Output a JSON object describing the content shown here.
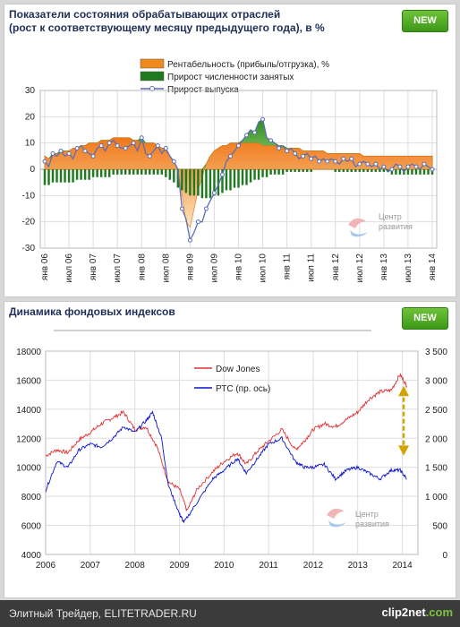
{
  "chart_data": [
    {
      "type": "line",
      "title": "Показатели состояния обрабатывающих отраслей",
      "subtitle": "(рост к соответствующему месяцу предыдущего года), в %",
      "ylim": [
        -30,
        30
      ],
      "yticks": [
        "30",
        "20",
        "10",
        "0",
        "-10",
        "-20",
        "-30"
      ],
      "xticks": [
        "янв 06",
        "июл 06",
        "янв 07",
        "июл 07",
        "янв 08",
        "июл 08",
        "янв 09",
        "июл 09",
        "янв 10",
        "июл 10",
        "янв 11",
        "июл 11",
        "янв 12",
        "июл 12",
        "янв 13",
        "июл 13",
        "янв 14"
      ],
      "legend_position": "top",
      "x_start_month": "2006-01",
      "series": [
        {
          "name": "Рентабельность (прибыль/отгрузка), %",
          "kind": "area",
          "color": "#f08a1c",
          "values": [
            5,
            4,
            5,
            6,
            6,
            7,
            7,
            8,
            8,
            9,
            9,
            10,
            10,
            10,
            11,
            11,
            11,
            12,
            12,
            12,
            12,
            12,
            11,
            11,
            10,
            10,
            10,
            10,
            9,
            8,
            7,
            5,
            3,
            0,
            -10,
            -20,
            -22,
            -15,
            -8,
            -3,
            2,
            5,
            7,
            8,
            9,
            9,
            10,
            10,
            10,
            10,
            10,
            10,
            10,
            10,
            9,
            9,
            9,
            9,
            9,
            8,
            8,
            8,
            8,
            8,
            7,
            7,
            7,
            7,
            7,
            7,
            6,
            6,
            6,
            6,
            6,
            6,
            6,
            6,
            6,
            5,
            5,
            5,
            5,
            5,
            5,
            5,
            5,
            5,
            5,
            5,
            5,
            5,
            5,
            5,
            5,
            5,
            5
          ]
        },
        {
          "name": "Прирост численности занятых",
          "kind": "bar",
          "color": "#1f7a1f",
          "values": [
            -6,
            -6,
            -5,
            -5,
            -5,
            -5,
            -5,
            -5,
            -4,
            -4,
            -4,
            -4,
            -3,
            -3,
            -3,
            -3,
            -3,
            -2,
            -2,
            -2,
            -2,
            -2,
            -2,
            -2,
            -2,
            -2,
            -2,
            -2,
            -2,
            -2,
            -3,
            -4,
            -5,
            -7,
            -8,
            -9,
            -10,
            -10,
            -10,
            -11,
            -11,
            -11,
            -10,
            -10,
            -9,
            -8,
            -8,
            -7,
            -7,
            -6,
            -6,
            -5,
            -4,
            -4,
            -3,
            -3,
            -2,
            -2,
            -2,
            -2,
            -1,
            -1,
            -1,
            -1,
            -1,
            -1,
            -1,
            0,
            0,
            0,
            0,
            0,
            -1,
            -1,
            -1,
            -1,
            -1,
            -1,
            -1,
            -1,
            -1,
            -1,
            -1,
            -1,
            -1,
            -1,
            -2,
            -2,
            -2,
            -2,
            -2,
            -2,
            -2,
            -2,
            -2,
            -2,
            -2
          ]
        },
        {
          "name": "Прирост выпуска",
          "kind": "line",
          "color": "#5a6fb4",
          "values": [
            3,
            1,
            6,
            5,
            7,
            5,
            6,
            4,
            8,
            9,
            7,
            6,
            5,
            8,
            9,
            7,
            10,
            11,
            9,
            8,
            8,
            9,
            10,
            7,
            12,
            6,
            5,
            7,
            9,
            6,
            8,
            5,
            3,
            0,
            -15,
            -19,
            -27,
            -24,
            -20,
            -20,
            -15,
            -12,
            -9,
            -6,
            -2,
            3,
            5,
            7,
            9,
            11,
            13,
            15,
            14,
            18,
            19,
            12,
            11,
            10,
            8,
            9,
            7,
            8,
            6,
            4,
            5,
            6,
            4,
            5,
            3,
            4,
            3,
            4,
            3,
            2,
            4,
            3,
            4,
            1,
            2,
            3,
            2,
            1,
            2,
            0,
            1,
            -1,
            0,
            2,
            1,
            -1,
            1,
            2,
            1,
            0,
            2,
            1,
            0
          ]
        }
      ]
    },
    {
      "type": "line",
      "title": "Динамика фондовых индексов",
      "ylim": [
        4000,
        18000
      ],
      "ylim_right": [
        0,
        3500
      ],
      "yticks_left": [
        "18000",
        "16000",
        "14000",
        "12000",
        "10000",
        "8000",
        "6000",
        "4000"
      ],
      "yticks_right": [
        "3 500",
        "3 000",
        "2 500",
        "2 000",
        "1 500",
        "1 000",
        "500",
        "0"
      ],
      "xticks": [
        "2006",
        "2007",
        "2008",
        "2009",
        "2010",
        "2011",
        "2012",
        "2013",
        "2014"
      ],
      "legend_position": "top-center",
      "series": [
        {
          "name": "Dow Jones",
          "axis": "left",
          "color": "#e03030",
          "x": [
            2006.0,
            2006.25,
            2006.5,
            2006.75,
            2007.0,
            2007.25,
            2007.5,
            2007.75,
            2008.0,
            2008.25,
            2008.5,
            2008.75,
            2009.0,
            2009.17,
            2009.4,
            2009.75,
            2010.0,
            2010.3,
            2010.5,
            2010.75,
            2011.0,
            2011.3,
            2011.6,
            2011.8,
            2012.0,
            2012.25,
            2012.5,
            2012.75,
            2013.0,
            2013.25,
            2013.5,
            2013.75,
            2013.95,
            2014.1
          ],
          "values": [
            10800,
            11200,
            11000,
            11900,
            12400,
            13000,
            13400,
            13800,
            12600,
            12800,
            11400,
            9000,
            8500,
            7000,
            8500,
            9700,
            10400,
            11000,
            10200,
            11100,
            11800,
            12600,
            11200,
            11800,
            12600,
            13000,
            12800,
            13300,
            13800,
            14700,
            15200,
            15300,
            16400,
            15600
          ]
        },
        {
          "name": "РТС (пр. ось)",
          "axis": "right",
          "color": "#0a14c8",
          "x": [
            2006.0,
            2006.25,
            2006.5,
            2006.75,
            2007.0,
            2007.25,
            2007.5,
            2007.75,
            2008.0,
            2008.25,
            2008.4,
            2008.6,
            2008.75,
            2009.0,
            2009.1,
            2009.4,
            2009.75,
            2010.0,
            2010.3,
            2010.5,
            2010.75,
            2011.0,
            2011.3,
            2011.6,
            2011.8,
            2012.0,
            2012.25,
            2012.5,
            2012.75,
            2013.0,
            2013.25,
            2013.5,
            2013.75,
            2013.95,
            2014.1
          ],
          "values": [
            1100,
            1600,
            1500,
            1800,
            1900,
            1850,
            2000,
            2200,
            2100,
            2300,
            2450,
            2000,
            1200,
            700,
            550,
            900,
            1300,
            1450,
            1650,
            1400,
            1650,
            1900,
            2000,
            1600,
            1500,
            1500,
            1550,
            1300,
            1450,
            1500,
            1400,
            1300,
            1450,
            1450,
            1300
          ]
        }
      ],
      "annotation": "yellow dashed double-headed arrow near 2014 spanning the gap between the series"
    }
  ],
  "ui": {
    "new_label": "NEW",
    "watermark_line1": "Центр",
    "watermark_line2": "развития",
    "footer_text": "Элитный Трейдер, ELITETRADER.RU",
    "footer_logo_main": "clip2net",
    "footer_logo_suffix": ".com"
  },
  "colors": {
    "panel_title": "#1e2f57",
    "grid": "#dddddd",
    "new_button": "#4caa22"
  }
}
